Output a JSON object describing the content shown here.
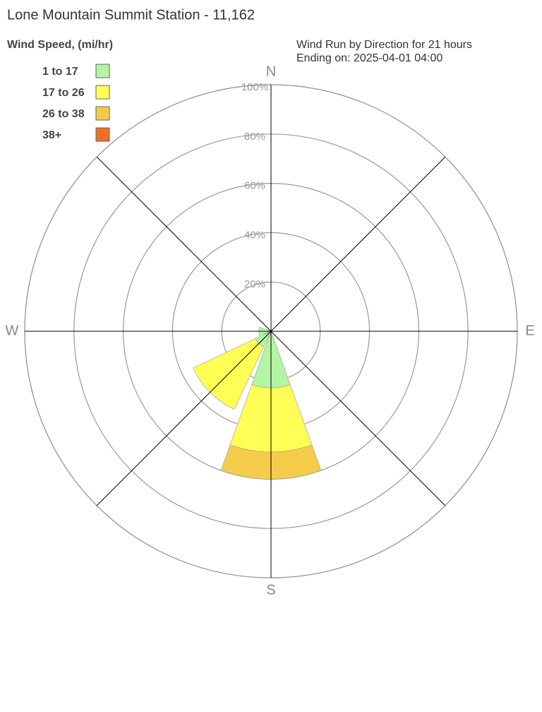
{
  "chart_data": {
    "type": "windrose",
    "title": "Lone Mountain Summit Station - 11,162",
    "legend_title": "Wind Speed, (mi/hr)",
    "subtitle": "Wind Run by Direction for 21 hours",
    "subtitle2": "Ending on: 2025-04-01 04:00",
    "categories": [
      "N",
      null,
      "E",
      null,
      "S",
      null,
      "W",
      null
    ],
    "series": [
      {
        "name": "1 to 17",
        "color": "#b3f5a3",
        "values": [
          0,
          0,
          0,
          0,
          23,
          7,
          5,
          0
        ]
      },
      {
        "name": "17 to 26",
        "color": "#ffff55",
        "values": [
          0,
          0,
          0,
          0,
          26,
          28,
          0,
          0
        ]
      },
      {
        "name": "26 to 38",
        "color": "#f5cc4a",
        "values": [
          0,
          0,
          0,
          0,
          11,
          0,
          0,
          0
        ]
      },
      {
        "name": "38+",
        "color": "#f07028",
        "values": [
          0,
          0,
          0,
          0,
          0,
          0,
          0,
          0
        ]
      }
    ],
    "rlim": [
      0,
      100
    ],
    "rticks": [
      {
        "value": 20,
        "label": "20%"
      },
      {
        "value": 40,
        "label": "40%"
      },
      {
        "value": 60,
        "label": "60%"
      },
      {
        "value": 80,
        "label": "80%"
      },
      {
        "value": 100,
        "label": "100%"
      }
    ]
  }
}
